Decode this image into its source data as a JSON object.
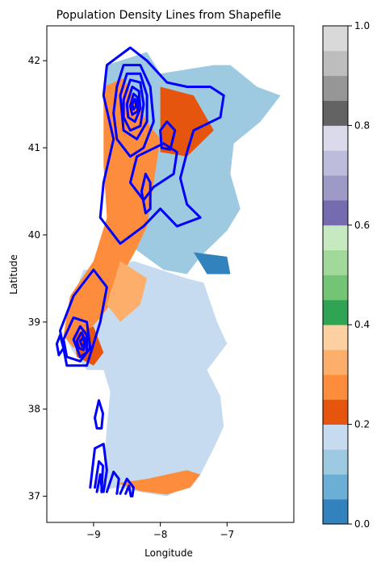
{
  "chart_data": {
    "type": "map-contour",
    "title": "Population Density Lines from Shapefile",
    "xlabel": "Longitude",
    "ylabel": "Latitude",
    "xlim": [
      -9.7,
      -6.0
    ],
    "ylim": [
      36.7,
      42.4
    ],
    "xticks": [
      -9,
      -8,
      -7
    ],
    "xtick_labels": [
      "−9",
      "−8",
      "−7"
    ],
    "yticks": [
      37,
      38,
      39,
      40,
      41,
      42
    ],
    "ytick_labels": [
      "37",
      "38",
      "39",
      "40",
      "41",
      "42"
    ],
    "contour_color": "#0000ff",
    "contours": [
      {
        "name": "north-outer",
        "points": [
          [
            -8.8,
            41.95
          ],
          [
            -8.45,
            42.15
          ],
          [
            -8.2,
            42.0
          ],
          [
            -7.9,
            41.75
          ],
          [
            -7.6,
            41.7
          ],
          [
            -7.25,
            41.7
          ],
          [
            -7.05,
            41.6
          ],
          [
            -7.1,
            41.35
          ],
          [
            -7.5,
            41.2
          ],
          [
            -7.6,
            40.95
          ],
          [
            -7.7,
            40.65
          ],
          [
            -7.6,
            40.35
          ],
          [
            -7.4,
            40.2
          ],
          [
            -7.75,
            40.1
          ],
          [
            -8.0,
            40.3
          ],
          [
            -8.25,
            40.1
          ],
          [
            -8.6,
            39.9
          ],
          [
            -8.9,
            40.2
          ],
          [
            -8.85,
            40.6
          ],
          [
            -8.7,
            41.1
          ],
          [
            -8.85,
            41.6
          ],
          [
            -8.8,
            41.95
          ]
        ]
      },
      {
        "name": "north-2",
        "points": [
          [
            -8.65,
            41.7
          ],
          [
            -8.55,
            41.95
          ],
          [
            -8.3,
            41.95
          ],
          [
            -8.15,
            41.7
          ],
          [
            -8.1,
            41.3
          ],
          [
            -8.25,
            41.0
          ],
          [
            -8.45,
            40.9
          ],
          [
            -8.65,
            41.1
          ],
          [
            -8.7,
            41.4
          ],
          [
            -8.65,
            41.7
          ]
        ]
      },
      {
        "name": "north-3",
        "points": [
          [
            -8.6,
            41.6
          ],
          [
            -8.5,
            41.85
          ],
          [
            -8.3,
            41.85
          ],
          [
            -8.2,
            41.6
          ],
          [
            -8.2,
            41.3
          ],
          [
            -8.35,
            41.1
          ],
          [
            -8.55,
            41.2
          ],
          [
            -8.6,
            41.6
          ]
        ]
      },
      {
        "name": "north-4",
        "points": [
          [
            -8.55,
            41.55
          ],
          [
            -8.45,
            41.78
          ],
          [
            -8.3,
            41.75
          ],
          [
            -8.25,
            41.5
          ],
          [
            -8.3,
            41.25
          ],
          [
            -8.45,
            41.2
          ],
          [
            -8.55,
            41.35
          ],
          [
            -8.55,
            41.55
          ]
        ]
      },
      {
        "name": "north-5",
        "points": [
          [
            -8.5,
            41.5
          ],
          [
            -8.42,
            41.7
          ],
          [
            -8.32,
            41.65
          ],
          [
            -8.3,
            41.45
          ],
          [
            -8.38,
            41.3
          ],
          [
            -8.48,
            41.35
          ],
          [
            -8.5,
            41.5
          ]
        ]
      },
      {
        "name": "north-6",
        "points": [
          [
            -8.45,
            41.48
          ],
          [
            -8.4,
            41.62
          ],
          [
            -8.34,
            41.58
          ],
          [
            -8.34,
            41.42
          ],
          [
            -8.42,
            41.38
          ],
          [
            -8.45,
            41.48
          ]
        ]
      },
      {
        "name": "north-7",
        "points": [
          [
            -8.42,
            41.5
          ],
          [
            -8.38,
            41.56
          ],
          [
            -8.36,
            41.48
          ],
          [
            -8.4,
            41.44
          ],
          [
            -8.42,
            41.5
          ]
        ]
      },
      {
        "name": "mid-loop",
        "points": [
          [
            -8.35,
            40.9
          ],
          [
            -7.95,
            41.05
          ],
          [
            -7.75,
            40.95
          ],
          [
            -7.8,
            40.7
          ],
          [
            -8.1,
            40.55
          ],
          [
            -8.25,
            40.4
          ],
          [
            -8.45,
            40.6
          ],
          [
            -8.35,
            40.9
          ]
        ]
      },
      {
        "name": "east-loop",
        "points": [
          [
            -8.0,
            41.2
          ],
          [
            -7.9,
            41.3
          ],
          [
            -7.78,
            41.2
          ],
          [
            -7.85,
            40.98
          ],
          [
            -7.98,
            41.0
          ],
          [
            -8.0,
            41.2
          ]
        ]
      },
      {
        "name": "small-oval",
        "points": [
          [
            -8.28,
            40.5
          ],
          [
            -8.22,
            40.7
          ],
          [
            -8.15,
            40.6
          ],
          [
            -8.15,
            40.3
          ],
          [
            -8.22,
            40.25
          ],
          [
            -8.28,
            40.5
          ]
        ]
      },
      {
        "name": "lisbon-outer",
        "points": [
          [
            -9.5,
            38.9
          ],
          [
            -9.3,
            39.3
          ],
          [
            -9.0,
            39.6
          ],
          [
            -8.8,
            39.4
          ],
          [
            -8.9,
            39.0
          ],
          [
            -9.1,
            38.5
          ],
          [
            -9.4,
            38.5
          ],
          [
            -9.5,
            38.9
          ]
        ]
      },
      {
        "name": "lisbon-2",
        "points": [
          [
            -9.45,
            38.8
          ],
          [
            -9.3,
            39.05
          ],
          [
            -9.1,
            39.0
          ],
          [
            -9.05,
            38.7
          ],
          [
            -9.2,
            38.55
          ],
          [
            -9.4,
            38.6
          ],
          [
            -9.45,
            38.8
          ]
        ]
      },
      {
        "name": "lisbon-3",
        "points": [
          [
            -9.3,
            38.8
          ],
          [
            -9.2,
            38.95
          ],
          [
            -9.1,
            38.85
          ],
          [
            -9.1,
            38.65
          ],
          [
            -9.2,
            38.6
          ],
          [
            -9.3,
            38.8
          ]
        ]
      },
      {
        "name": "lisbon-4",
        "points": [
          [
            -9.25,
            38.78
          ],
          [
            -9.18,
            38.88
          ],
          [
            -9.12,
            38.78
          ],
          [
            -9.15,
            38.68
          ],
          [
            -9.22,
            38.7
          ],
          [
            -9.25,
            38.78
          ]
        ]
      },
      {
        "name": "lisbon-5",
        "points": [
          [
            -9.2,
            38.78
          ],
          [
            -9.16,
            38.82
          ],
          [
            -9.13,
            38.76
          ],
          [
            -9.17,
            38.72
          ],
          [
            -9.2,
            38.78
          ]
        ]
      },
      {
        "name": "lisbon-west",
        "points": [
          [
            -9.55,
            38.75
          ],
          [
            -9.5,
            38.85
          ],
          [
            -9.45,
            38.7
          ],
          [
            -9.52,
            38.62
          ],
          [
            -9.55,
            38.75
          ]
        ]
      },
      {
        "name": "setubal-oval",
        "points": [
          [
            -8.98,
            37.9
          ],
          [
            -8.92,
            38.1
          ],
          [
            -8.86,
            37.95
          ],
          [
            -8.88,
            37.78
          ],
          [
            -8.95,
            37.78
          ],
          [
            -8.98,
            37.9
          ]
        ]
      },
      {
        "name": "south-1",
        "points": [
          [
            -9.05,
            37.1
          ],
          [
            -8.98,
            37.55
          ],
          [
            -8.85,
            37.6
          ],
          [
            -8.8,
            37.3
          ],
          [
            -8.85,
            37.05
          ]
        ]
      },
      {
        "name": "south-2",
        "points": [
          [
            -8.98,
            37.1
          ],
          [
            -8.92,
            37.4
          ],
          [
            -8.86,
            37.35
          ],
          [
            -8.88,
            37.05
          ]
        ]
      },
      {
        "name": "south-3",
        "points": [
          [
            -8.95,
            37.05
          ],
          [
            -8.9,
            37.25
          ],
          [
            -8.87,
            37.05
          ]
        ]
      },
      {
        "name": "south-4",
        "points": [
          [
            -8.8,
            37.05
          ],
          [
            -8.7,
            37.28
          ],
          [
            -8.62,
            37.2
          ],
          [
            -8.65,
            37.03
          ]
        ]
      },
      {
        "name": "south-5",
        "points": [
          [
            -8.6,
            37.03
          ],
          [
            -8.5,
            37.2
          ],
          [
            -8.4,
            37.1
          ],
          [
            -8.42,
            37.0
          ]
        ]
      },
      {
        "name": "south-6",
        "points": [
          [
            -8.52,
            37.03
          ],
          [
            -8.47,
            37.12
          ],
          [
            -8.44,
            37.0
          ]
        ]
      }
    ],
    "regions": [
      {
        "name": "north",
        "color": "#9ecae1",
        "points": [
          [
            -8.8,
            41.95
          ],
          [
            -8.2,
            42.1
          ],
          [
            -8.0,
            41.85
          ],
          [
            -7.6,
            41.9
          ],
          [
            -7.2,
            41.95
          ],
          [
            -6.95,
            41.95
          ],
          [
            -6.55,
            41.7
          ],
          [
            -6.2,
            41.6
          ],
          [
            -6.5,
            41.3
          ],
          [
            -6.9,
            41.05
          ],
          [
            -6.95,
            40.7
          ],
          [
            -6.8,
            40.3
          ],
          [
            -7.0,
            40.05
          ],
          [
            -7.4,
            39.75
          ],
          [
            -7.6,
            39.55
          ],
          [
            -7.95,
            39.6
          ],
          [
            -8.4,
            39.85
          ],
          [
            -8.6,
            40.1
          ],
          [
            -8.8,
            40.5
          ],
          [
            -8.7,
            41.0
          ],
          [
            -8.85,
            41.5
          ]
        ]
      },
      {
        "name": "south",
        "color": "#c6dbef",
        "points": [
          [
            -9.15,
            39.6
          ],
          [
            -8.8,
            39.6
          ],
          [
            -8.4,
            39.7
          ],
          [
            -7.6,
            39.5
          ],
          [
            -7.35,
            39.45
          ],
          [
            -7.15,
            39.0
          ],
          [
            -7.0,
            38.75
          ],
          [
            -7.3,
            38.45
          ],
          [
            -7.1,
            38.15
          ],
          [
            -7.05,
            37.8
          ],
          [
            -7.2,
            37.55
          ],
          [
            -7.4,
            37.25
          ],
          [
            -7.55,
            37.15
          ],
          [
            -7.9,
            37.0
          ],
          [
            -8.3,
            37.05
          ],
          [
            -8.65,
            37.1
          ],
          [
            -8.95,
            37.05
          ],
          [
            -8.85,
            37.3
          ],
          [
            -8.8,
            37.8
          ],
          [
            -8.75,
            38.2
          ],
          [
            -8.85,
            38.45
          ],
          [
            -9.1,
            38.45
          ],
          [
            -9.3,
            38.65
          ],
          [
            -9.45,
            38.85
          ],
          [
            -9.35,
            39.2
          ]
        ]
      },
      {
        "name": "coast-orange",
        "color": "#fd8d3c",
        "points": [
          [
            -8.85,
            41.7
          ],
          [
            -8.55,
            41.8
          ],
          [
            -8.2,
            41.3
          ],
          [
            -8.0,
            41.1
          ],
          [
            -8.1,
            40.6
          ],
          [
            -8.2,
            40.1
          ],
          [
            -8.35,
            39.85
          ],
          [
            -8.6,
            39.5
          ],
          [
            -8.7,
            39.25
          ],
          [
            -8.9,
            39.05
          ],
          [
            -9.3,
            38.7
          ],
          [
            -9.45,
            38.85
          ],
          [
            -9.35,
            39.3
          ],
          [
            -9.0,
            39.7
          ],
          [
            -8.8,
            40.2
          ],
          [
            -8.85,
            40.8
          ]
        ]
      },
      {
        "name": "interior-orange",
        "color": "#e6550d",
        "points": [
          [
            -8.0,
            41.7
          ],
          [
            -7.5,
            41.6
          ],
          [
            -7.2,
            41.2
          ],
          [
            -7.6,
            40.9
          ],
          [
            -8.0,
            40.95
          ]
        ]
      },
      {
        "name": "tagus-mix",
        "color": "#fdae6b",
        "points": [
          [
            -8.6,
            39.7
          ],
          [
            -8.2,
            39.5
          ],
          [
            -8.3,
            39.2
          ],
          [
            -8.6,
            39.0
          ],
          [
            -8.8,
            39.2
          ]
        ]
      },
      {
        "name": "lisbon-red",
        "color": "#e6550d",
        "points": [
          [
            -9.3,
            38.85
          ],
          [
            -9.0,
            38.95
          ],
          [
            -8.85,
            38.65
          ],
          [
            -9.0,
            38.5
          ],
          [
            -9.25,
            38.6
          ]
        ]
      },
      {
        "name": "algarve",
        "color": "#fd8d3c",
        "points": [
          [
            -8.65,
            37.15
          ],
          [
            -8.2,
            37.2
          ],
          [
            -7.6,
            37.3
          ],
          [
            -7.4,
            37.25
          ],
          [
            -7.55,
            37.1
          ],
          [
            -7.9,
            37.02
          ],
          [
            -8.3,
            37.06
          ]
        ]
      },
      {
        "name": "east-blue",
        "color": "#3182bd",
        "points": [
          [
            -7.5,
            39.8
          ],
          [
            -7.0,
            39.75
          ],
          [
            -6.95,
            39.55
          ],
          [
            -7.3,
            39.55
          ]
        ]
      }
    ],
    "colorbar": {
      "colors": [
        "#3182bd",
        "#6baed6",
        "#9ecae1",
        "#c6dbef",
        "#e6550d",
        "#fd8d3c",
        "#fdae6b",
        "#fdd0a2",
        "#31a354",
        "#74c476",
        "#a1d99b",
        "#c7e9c0",
        "#756bb1",
        "#9e9ac8",
        "#bcbddc",
        "#dadaeb",
        "#636363",
        "#969696",
        "#bdbdbd",
        "#d9d9d9"
      ],
      "range": [
        0.0,
        1.0
      ],
      "ticks": [
        0.0,
        0.2,
        0.4,
        0.6,
        0.8,
        1.0
      ],
      "tick_labels": [
        "0.0",
        "0.2",
        "0.4",
        "0.6",
        "0.8",
        "1.0"
      ]
    }
  }
}
